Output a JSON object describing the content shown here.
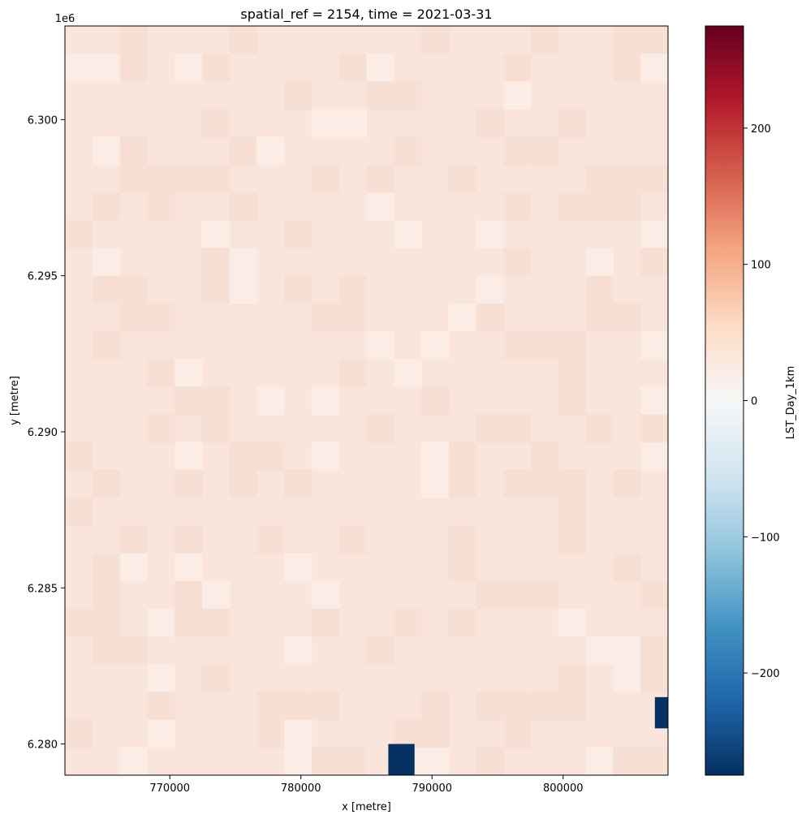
{
  "chart_data": {
    "type": "heatmap",
    "title": "spatial_ref = 2154, time = 2021-03-31",
    "xlabel": "x [metre]",
    "ylabel": "y [metre]",
    "y_offset_label": "1e6",
    "xlim": [
      762000,
      808000
    ],
    "ylim": [
      6279000,
      6303000
    ],
    "x_ticks": [
      770000,
      780000,
      790000,
      800000
    ],
    "x_tick_labels": [
      "770000",
      "780000",
      "790000",
      "800000"
    ],
    "y_ticks": [
      6280000,
      6285000,
      6290000,
      6295000,
      6300000
    ],
    "y_tick_labels": [
      "6.280",
      "6.285",
      "6.290",
      "6.295",
      "6.300"
    ],
    "grid": false,
    "colorbar": {
      "label": "LST_Day_1km",
      "colormap": "RdBu_r",
      "vmin": -275,
      "vmax": 275,
      "ticks": [
        -200,
        -100,
        0,
        100,
        200
      ],
      "tick_labels": [
        "−200",
        "−100",
        "0",
        "100",
        "200"
      ],
      "stops": [
        "#053061",
        "#2166ac",
        "#4393c3",
        "#92c5de",
        "#d1e5f0",
        "#f7f7f7",
        "#fddbc7",
        "#f4a582",
        "#d6604d",
        "#b2182b",
        "#67001f"
      ]
    },
    "field_value": 30,
    "low_value_cells": [
      {
        "x": [
          786666,
          788666
        ],
        "y": [
          6279000,
          6280000
        ],
        "value": -275
      },
      {
        "x": [
          807000,
          808000
        ],
        "y": [
          6280500,
          6281500
        ],
        "value": -275
      }
    ],
    "colors": {
      "field_base": "#f9e5dc",
      "field_warm": "#f7dfd3",
      "field_cool": "#fbece6"
    }
  }
}
